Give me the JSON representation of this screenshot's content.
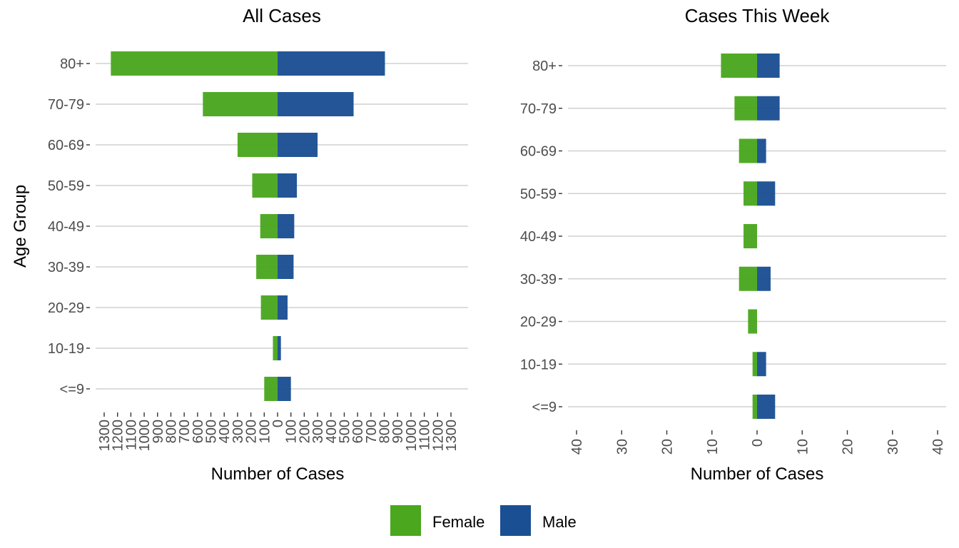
{
  "chart_data": [
    {
      "type": "bar",
      "orientation": "horizontal-diverging",
      "title": "All Cases",
      "xlabel": "Number of Cases",
      "ylabel": "Age Group",
      "categories": [
        "80+",
        "70-79",
        "60-69",
        "50-59",
        "40-49",
        "30-39",
        "20-29",
        "10-19",
        "<=9"
      ],
      "series": [
        {
          "name": "Female",
          "color": "#4aa71e",
          "direction": "left",
          "values": [
            1250,
            560,
            300,
            190,
            130,
            160,
            125,
            35,
            100
          ]
        },
        {
          "name": "Male",
          "color": "#1b4f93",
          "direction": "right",
          "values": [
            805,
            570,
            300,
            145,
            125,
            120,
            75,
            25,
            100
          ]
        }
      ],
      "xlim": [
        -1300,
        1300
      ],
      "xticks": [
        -1300,
        -1200,
        -1100,
        -1000,
        -900,
        -800,
        -700,
        -600,
        -500,
        -400,
        -300,
        -200,
        -100,
        0,
        100,
        200,
        300,
        400,
        500,
        600,
        700,
        800,
        900,
        1000,
        1100,
        1200,
        1300
      ],
      "xtick_labels": [
        "1300",
        "1200",
        "1100",
        "1000",
        "900",
        "800",
        "700",
        "600",
        "500",
        "400",
        "300",
        "200",
        "100",
        "0",
        "100",
        "200",
        "300",
        "400",
        "500",
        "600",
        "700",
        "800",
        "900",
        "1000",
        "1100",
        "1200",
        "1300"
      ],
      "grid": "horizontal"
    },
    {
      "type": "bar",
      "orientation": "horizontal-diverging",
      "title": "Cases This Week",
      "xlabel": "Number of Cases",
      "ylabel": "",
      "categories": [
        "80+",
        "70-79",
        "60-69",
        "50-59",
        "40-49",
        "30-39",
        "20-29",
        "10-19",
        "<=9"
      ],
      "series": [
        {
          "name": "Female",
          "color": "#4aa71e",
          "direction": "left",
          "values": [
            8,
            5,
            4,
            3,
            3,
            4,
            2,
            1,
            1
          ]
        },
        {
          "name": "Male",
          "color": "#1b4f93",
          "direction": "right",
          "values": [
            5,
            5,
            2,
            4,
            0,
            3,
            0,
            2,
            4
          ]
        }
      ],
      "xlim": [
        -40,
        40
      ],
      "xticks": [
        -40,
        -30,
        -20,
        -10,
        0,
        10,
        20,
        30,
        40
      ],
      "xtick_labels": [
        "40",
        "30",
        "20",
        "10",
        "0",
        "10",
        "20",
        "30",
        "40"
      ],
      "grid": "horizontal"
    }
  ],
  "legend": {
    "placement": "bottom",
    "items": [
      {
        "label": "Female",
        "color": "#4aa71e"
      },
      {
        "label": "Male",
        "color": "#1b4f93"
      }
    ]
  }
}
